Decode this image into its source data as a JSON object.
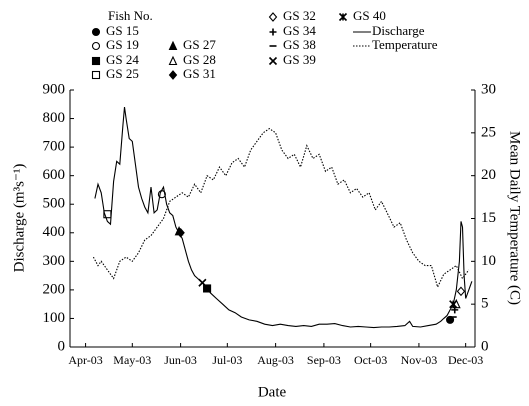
{
  "chart_data": {
    "type": "line",
    "legend_title": "Fish No.",
    "xlabel": "Date",
    "ylabel": "Discharge (m³s⁻¹)",
    "y2label": "Mean Daily Temperature (C)",
    "xlim": [
      -10,
      250
    ],
    "xticks": [
      {
        "value": 0,
        "label": "Apr-03"
      },
      {
        "value": 30,
        "label": "May-03"
      },
      {
        "value": 61,
        "label": "Jun-03"
      },
      {
        "value": 91,
        "label": "Jul-03"
      },
      {
        "value": 122,
        "label": "Aug-03"
      },
      {
        "value": 153,
        "label": "Sep-03"
      },
      {
        "value": 183,
        "label": "Oct-03"
      },
      {
        "value": 214,
        "label": "Nov-03"
      },
      {
        "value": 244,
        "label": "Dec-03"
      }
    ],
    "ylim": [
      0,
      900
    ],
    "yticks": [
      0,
      100,
      200,
      300,
      400,
      500,
      600,
      700,
      800,
      900
    ],
    "y2lim": [
      0,
      30
    ],
    "y2ticks": [
      0,
      5,
      10,
      15,
      20,
      25,
      30
    ],
    "series": [
      {
        "name": "GS 15",
        "marker": "circle-filled",
        "color": "#000",
        "x": [
          234
        ],
        "values": [
          95
        ]
      },
      {
        "name": "GS 19",
        "marker": "circle-open",
        "color": "#000",
        "x": [
          49
        ],
        "values": [
          535
        ]
      },
      {
        "name": "GS 24",
        "marker": "square-filled",
        "color": "#000",
        "x": [
          78
        ],
        "values": [
          205
        ]
      },
      {
        "name": "GS 25",
        "marker": "square-open",
        "color": "#000",
        "x": [
          14
        ],
        "values": [
          465
        ]
      },
      {
        "name": "GS 27",
        "marker": "triangle-filled",
        "color": "#000",
        "x": [
          60
        ],
        "values": [
          405
        ]
      },
      {
        "name": "GS 28",
        "marker": "triangle-open",
        "color": "#000",
        "x": [
          238
        ],
        "values": [
          150
        ]
      },
      {
        "name": "GS 31",
        "marker": "diamond-filled",
        "color": "#000",
        "x": [
          61
        ],
        "values": [
          400
        ]
      },
      {
        "name": "GS 32",
        "marker": "diamond-open",
        "color": "#000",
        "x": [
          241
        ],
        "values": [
          195
        ]
      },
      {
        "name": "GS 34",
        "marker": "plus",
        "color": "#000",
        "x": [
          237
        ],
        "values": [
          130
        ]
      },
      {
        "name": "GS 38",
        "marker": "dash",
        "color": "#000",
        "x": [
          236
        ],
        "values": [
          105
        ]
      },
      {
        "name": "GS 39",
        "marker": "cross",
        "color": "#000",
        "x": [
          75
        ],
        "values": [
          225
        ]
      },
      {
        "name": "GS 40",
        "marker": "asterisk",
        "color": "#000",
        "x": [
          236
        ],
        "values": [
          150
        ]
      },
      {
        "name": "Discharge",
        "style": "solid",
        "color": "#000",
        "x": [
          6,
          8,
          10,
          12,
          14,
          16,
          18,
          20,
          22,
          24,
          25,
          26,
          28,
          30,
          32,
          34,
          36,
          38,
          40,
          42,
          44,
          46,
          48,
          50,
          52,
          54,
          56,
          58,
          60,
          62,
          64,
          66,
          68,
          70,
          72,
          74,
          76,
          78,
          80,
          84,
          88,
          92,
          96,
          100,
          105,
          110,
          115,
          120,
          125,
          130,
          135,
          140,
          145,
          150,
          155,
          160,
          165,
          170,
          175,
          180,
          185,
          190,
          195,
          200,
          205,
          208,
          210,
          215,
          220,
          225,
          228,
          230,
          232,
          234,
          236,
          238,
          240,
          241,
          242,
          243,
          244,
          246,
          248
        ],
        "values": [
          520,
          570,
          540,
          470,
          440,
          430,
          580,
          650,
          640,
          780,
          840,
          800,
          730,
          720,
          640,
          560,
          520,
          490,
          470,
          560,
          470,
          480,
          540,
          560,
          500,
          470,
          460,
          420,
          400,
          380,
          340,
          300,
          270,
          250,
          240,
          230,
          220,
          205,
          190,
          170,
          150,
          130,
          120,
          105,
          95,
          90,
          80,
          75,
          80,
          75,
          72,
          75,
          72,
          80,
          80,
          82,
          75,
          70,
          72,
          70,
          68,
          70,
          70,
          72,
          75,
          90,
          72,
          70,
          75,
          80,
          90,
          100,
          110,
          130,
          150,
          200,
          300,
          440,
          420,
          250,
          170,
          200,
          230
        ]
      },
      {
        "name": "Temperature",
        "style": "dotted",
        "axis": "y2",
        "color": "#000",
        "x": [
          5,
          8,
          10,
          14,
          18,
          22,
          26,
          30,
          34,
          38,
          42,
          46,
          50,
          54,
          58,
          62,
          66,
          70,
          74,
          78,
          82,
          86,
          90,
          94,
          98,
          102,
          106,
          110,
          114,
          118,
          122,
          126,
          130,
          134,
          138,
          142,
          146,
          150,
          154,
          158,
          162,
          166,
          170,
          174,
          178,
          182,
          186,
          190,
          194,
          198,
          202,
          206,
          210,
          214,
          218,
          222,
          226,
          230,
          234,
          238,
          242,
          246
        ],
        "values": [
          10.5,
          9.5,
          10,
          9,
          8,
          10,
          10.5,
          10,
          11,
          12.5,
          13,
          14,
          15,
          17,
          17.5,
          18,
          17.5,
          19,
          18,
          20,
          19.5,
          21,
          20,
          21.5,
          22,
          21,
          23,
          24,
          25,
          25.5,
          25,
          23,
          22,
          22.5,
          21,
          23.5,
          22,
          22.5,
          20.5,
          21,
          19,
          19.5,
          18,
          18.5,
          17.5,
          18,
          16,
          17,
          15.5,
          14,
          14.5,
          12.5,
          11,
          10,
          9.5,
          9.5,
          7,
          8.5,
          9,
          9.5,
          8,
          9
        ]
      }
    ]
  }
}
